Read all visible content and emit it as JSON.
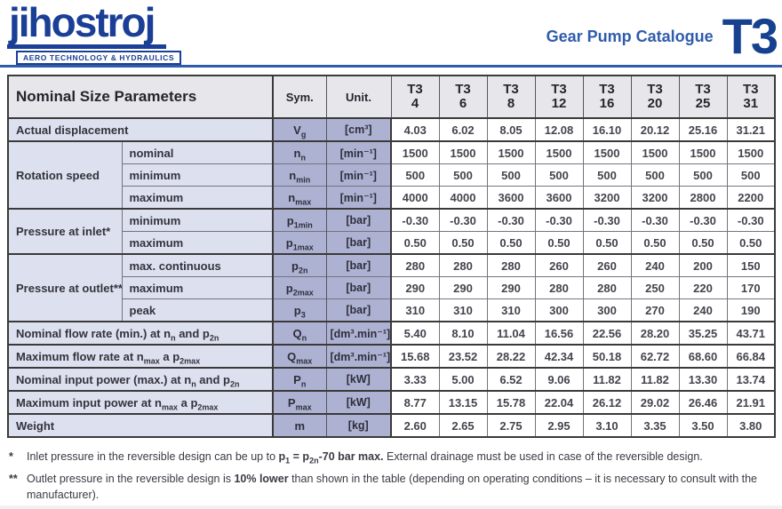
{
  "header": {
    "logo_text": "jihostroj",
    "logo_tagline": "AERO TECHNOLOGY & HYDRAULICS",
    "catalogue_label": "Gear Pump Catalogue",
    "model": "T3"
  },
  "colors": {
    "brand_blue": "#1b3f96",
    "accent_blue": "#2f5cab",
    "header_row_bg": "#e7e7eb",
    "label_col_bg": "#dde0ee",
    "sym_unit_col_bg": "#adb2d3",
    "thick_border": "#3a3a3a"
  },
  "table": {
    "title": "Nominal Size Parameters",
    "sym_header": "Sym.",
    "unit_header": "Unit.",
    "model_prefix": "T3",
    "sizes": [
      "4",
      "6",
      "8",
      "12",
      "16",
      "20",
      "25",
      "31"
    ],
    "rows": [
      {
        "full_width": true,
        "thick_top": true,
        "label_segments": [
          {
            "t": "Actual displacement"
          }
        ],
        "symbol": {
          "base": "V",
          "sub": "g"
        },
        "unit": "[cm³]",
        "values": [
          "4.03",
          "6.02",
          "8.05",
          "12.08",
          "16.10",
          "20.12",
          "25.16",
          "31.21"
        ]
      },
      {
        "thick_top": true,
        "group": {
          "label": "Rotation speed",
          "rows": 3
        },
        "label_segments": [
          {
            "t": "nominal"
          }
        ],
        "symbol": {
          "base": "n",
          "sub": "n"
        },
        "unit": "[min⁻¹]",
        "values": [
          "1500",
          "1500",
          "1500",
          "1500",
          "1500",
          "1500",
          "1500",
          "1500"
        ]
      },
      {
        "label_segments": [
          {
            "t": "minimum"
          }
        ],
        "symbol": {
          "base": "n",
          "sub": "min"
        },
        "unit": "[min⁻¹]",
        "values": [
          "500",
          "500",
          "500",
          "500",
          "500",
          "500",
          "500",
          "500"
        ]
      },
      {
        "label_segments": [
          {
            "t": "maximum"
          }
        ],
        "symbol": {
          "base": "n",
          "sub": "max"
        },
        "unit": "[min⁻¹]",
        "values": [
          "4000",
          "4000",
          "3600",
          "3600",
          "3200",
          "3200",
          "2800",
          "2200"
        ]
      },
      {
        "thick_top": true,
        "group": {
          "label": "Pressure at inlet*",
          "rows": 2
        },
        "label_segments": [
          {
            "t": "minimum"
          }
        ],
        "symbol": {
          "base": "p",
          "sub": "1min"
        },
        "unit": "[bar]",
        "values": [
          "-0.30",
          "-0.30",
          "-0.30",
          "-0.30",
          "-0.30",
          "-0.30",
          "-0.30",
          "-0.30"
        ]
      },
      {
        "label_segments": [
          {
            "t": "maximum"
          }
        ],
        "symbol": {
          "base": "p",
          "sub": "1max"
        },
        "unit": "[bar]",
        "values": [
          "0.50",
          "0.50",
          "0.50",
          "0.50",
          "0.50",
          "0.50",
          "0.50",
          "0.50"
        ]
      },
      {
        "thick_top": true,
        "group": {
          "label": "Pressure at outlet**",
          "rows": 3
        },
        "label_segments": [
          {
            "t": "max. continuous"
          }
        ],
        "symbol": {
          "base": "p",
          "sub": "2n"
        },
        "unit": "[bar]",
        "values": [
          "280",
          "280",
          "280",
          "260",
          "260",
          "240",
          "200",
          "150"
        ]
      },
      {
        "label_segments": [
          {
            "t": "maximum"
          }
        ],
        "symbol": {
          "base": "p",
          "sub": "2max"
        },
        "unit": "[bar]",
        "values": [
          "290",
          "290",
          "290",
          "280",
          "280",
          "250",
          "220",
          "170"
        ]
      },
      {
        "label_segments": [
          {
            "t": "peak"
          }
        ],
        "symbol": {
          "base": "p",
          "sub": "3"
        },
        "unit": "[bar]",
        "values": [
          "310",
          "310",
          "310",
          "300",
          "300",
          "270",
          "240",
          "190"
        ]
      },
      {
        "full_width": true,
        "thick_top": true,
        "label_segments": [
          {
            "t": "Nominal flow rate (min.) at n"
          },
          {
            "t": "n",
            "sub": true
          },
          {
            "t": " and p"
          },
          {
            "t": "2n",
            "sub": true
          }
        ],
        "symbol": {
          "base": "Q",
          "sub": "n"
        },
        "unit": "[dm³.min⁻¹]",
        "values": [
          "5.40",
          "8.10",
          "11.04",
          "16.56",
          "22.56",
          "28.20",
          "35.25",
          "43.71"
        ]
      },
      {
        "full_width": true,
        "thick_top": true,
        "label_segments": [
          {
            "t": "Maximum flow rate at n"
          },
          {
            "t": "max",
            "sub": true
          },
          {
            "t": " a p"
          },
          {
            "t": "2max",
            "sub": true
          }
        ],
        "symbol": {
          "base": "Q",
          "sub": "max"
        },
        "unit": "[dm³.min⁻¹]",
        "values": [
          "15.68",
          "23.52",
          "28.22",
          "42.34",
          "50.18",
          "62.72",
          "68.60",
          "66.84"
        ]
      },
      {
        "full_width": true,
        "thick_top": true,
        "label_segments": [
          {
            "t": "Nominal input power (max.) at n"
          },
          {
            "t": "n",
            "sub": true
          },
          {
            "t": " and p"
          },
          {
            "t": "2n",
            "sub": true
          }
        ],
        "symbol": {
          "base": "P",
          "sub": "n"
        },
        "unit": "[kW]",
        "values": [
          "3.33",
          "5.00",
          "6.52",
          "9.06",
          "11.82",
          "11.82",
          "13.30",
          "13.74"
        ]
      },
      {
        "full_width": true,
        "thick_top": true,
        "label_segments": [
          {
            "t": "Maximum input power at n"
          },
          {
            "t": "max",
            "sub": true
          },
          {
            "t": " a p"
          },
          {
            "t": "2max",
            "sub": true
          }
        ],
        "symbol": {
          "base": "P",
          "sub": "max"
        },
        "unit": "[kW]",
        "values": [
          "8.77",
          "13.15",
          "15.78",
          "22.04",
          "26.12",
          "29.02",
          "26.46",
          "21.91"
        ]
      },
      {
        "full_width": true,
        "thick_top": true,
        "label_segments": [
          {
            "t": "Weight"
          }
        ],
        "symbol": {
          "base": "m",
          "sub": ""
        },
        "unit": "[kg]",
        "values": [
          "2.60",
          "2.65",
          "2.75",
          "2.95",
          "3.10",
          "3.35",
          "3.50",
          "3.80"
        ]
      }
    ]
  },
  "footnotes": [
    {
      "marker": "*",
      "segments": [
        {
          "t": "Inlet pressure in the reversible design can be up to "
        },
        {
          "t": "p",
          "bold": true
        },
        {
          "t": "1",
          "bold": true,
          "sub": true
        },
        {
          "t": " = p",
          "bold": true
        },
        {
          "t": "2n",
          "bold": true,
          "sub": true
        },
        {
          "t": "-70 bar max.",
          "bold": true
        },
        {
          "t": " External drainage must be used in case of the reversible design."
        }
      ]
    },
    {
      "marker": "**",
      "segments": [
        {
          "t": "Outlet pressure in the reversible design is "
        },
        {
          "t": "10% lower",
          "bold": true
        },
        {
          "t": " than shown in the table (depending on operating conditions – it is necessary to consult with the manufacturer)."
        }
      ]
    }
  ]
}
